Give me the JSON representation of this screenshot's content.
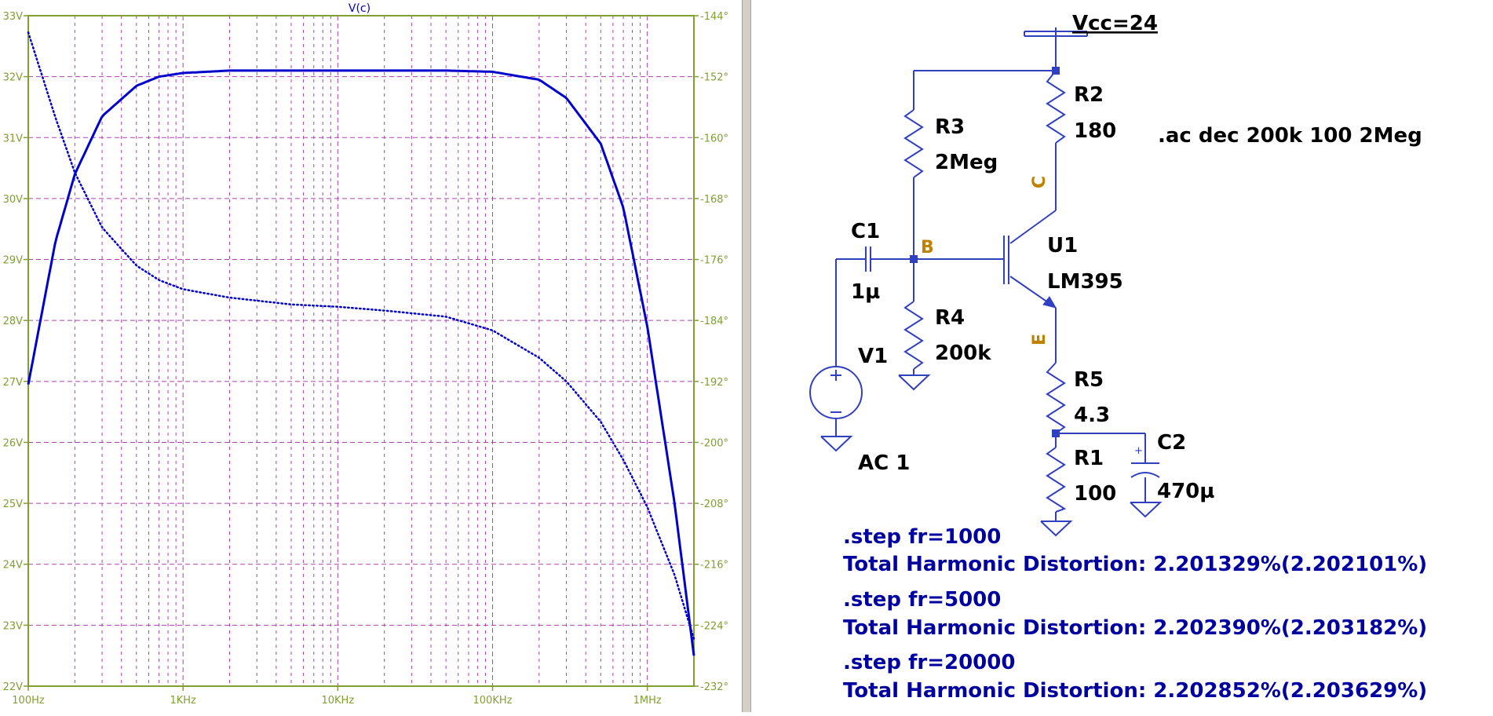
{
  "colors": {
    "axis": "#80a030",
    "grid": "#b040b0",
    "trace": "#0000cc",
    "schematic_wire": "#3040c0",
    "schematic_text": "#000000",
    "net_label": "#c08000",
    "directive_text": "#0000a0"
  },
  "waveform": {
    "trace_label": "V(c)",
    "traces": [
      {
        "kind": "magnitude",
        "style": "solid"
      },
      {
        "kind": "phase",
        "style": "dotted"
      }
    ]
  },
  "chart_data": {
    "type": "line",
    "title": "V(c)",
    "x_scale": "log",
    "xlim": [
      100,
      2000000
    ],
    "x_ticks": [
      100,
      1000,
      10000,
      100000,
      1000000
    ],
    "x_tick_labels": [
      "100Hz",
      "1KHz",
      "10KHz",
      "100KHz",
      "1MHz"
    ],
    "ylim_left": [
      22,
      33
    ],
    "y_ticks_left": [
      33,
      32,
      31,
      30,
      29,
      28,
      27,
      26,
      25,
      24,
      23,
      22
    ],
    "y_tick_labels_left": [
      "33V",
      "32V",
      "31V",
      "30V",
      "29V",
      "28V",
      "27V",
      "26V",
      "25V",
      "24V",
      "23V",
      "22V"
    ],
    "ylim_right": [
      -232,
      -144
    ],
    "y_ticks_right": [
      -144,
      -152,
      -160,
      -168,
      -176,
      -184,
      -192,
      -200,
      -208,
      -216,
      -224,
      -232
    ],
    "y_tick_labels_right": [
      "-144°",
      "-152°",
      "-160°",
      "-168°",
      "-176°",
      "-184°",
      "-192°",
      "-200°",
      "-208°",
      "-216°",
      "-224°",
      "-232°"
    ],
    "grid": true,
    "series": [
      {
        "axis": "left",
        "style": "solid",
        "x": [
          100,
          150,
          200,
          300,
          500,
          700,
          1000,
          2000,
          5000,
          10000,
          50000,
          100000,
          200000,
          300000,
          500000,
          700000,
          1000000,
          1500000,
          2000000
        ],
        "y": [
          26.95,
          29.3,
          30.4,
          31.35,
          31.85,
          32.0,
          32.06,
          32.1,
          32.1,
          32.1,
          32.1,
          32.08,
          31.95,
          31.65,
          30.9,
          29.85,
          27.9,
          25.0,
          22.5
        ]
      },
      {
        "axis": "right",
        "style": "dotted",
        "x": [
          100,
          150,
          200,
          300,
          500,
          700,
          1000,
          2000,
          5000,
          10000,
          20000,
          50000,
          100000,
          200000,
          300000,
          500000,
          700000,
          1000000,
          1500000,
          2000000
        ],
        "y": [
          -146.2,
          -157.4,
          -164.6,
          -171.8,
          -176.8,
          -178.7,
          -179.9,
          -181.0,
          -181.9,
          -182.2,
          -182.7,
          -183.5,
          -185.3,
          -188.9,
          -192.0,
          -197.3,
          -202.3,
          -208.5,
          -217.4,
          -225.8
        ]
      }
    ]
  },
  "schematic": {
    "vcc": "Vcc=24",
    "r2": {
      "name": "R2",
      "value": "180"
    },
    "r3": {
      "name": "R3",
      "value": "2Meg"
    },
    "r4": {
      "name": "R4",
      "value": "200k"
    },
    "r5": {
      "name": "R5",
      "value": "4.3"
    },
    "r1": {
      "name": "R1",
      "value": "100"
    },
    "c1": {
      "name": "C1",
      "value": "1µ"
    },
    "c2": {
      "name": "C2",
      "value": "470µ"
    },
    "u1": {
      "name": "U1",
      "value": "LM395"
    },
    "v1": {
      "name": "V1",
      "value": "AC 1"
    },
    "net_b": "B",
    "net_c": "C",
    "net_e": "E",
    "ac_directive": ".ac dec 200k 100 2Meg",
    "steps": [
      {
        "step": ".step fr=1000",
        "thd": "Total Harmonic Distortion: 2.201329%(2.202101%)"
      },
      {
        "step": ".step fr=5000",
        "thd": "Total Harmonic Distortion: 2.202390%(2.203182%)"
      },
      {
        "step": ".step fr=20000",
        "thd": "Total Harmonic Distortion: 2.202852%(2.203629%)"
      }
    ]
  }
}
